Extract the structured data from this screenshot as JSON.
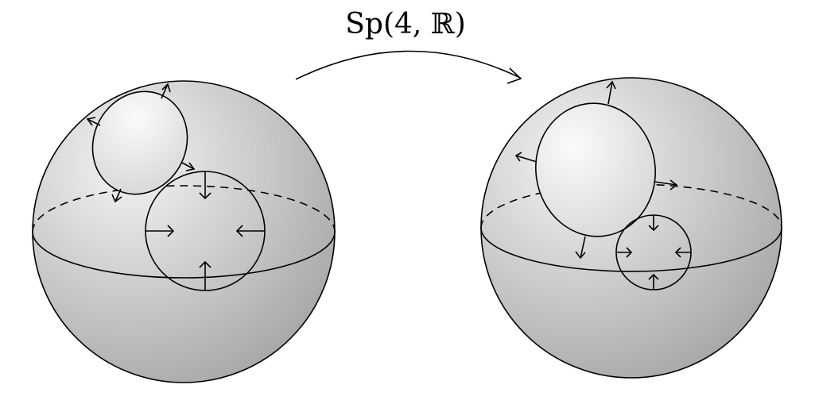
{
  "map_label": "Sp(4, ℝ)",
  "colors": {
    "sphere_light": "#f4f4f4",
    "sphere_dark": "#a9a9a9",
    "stroke": "#000000",
    "background": "#ffffff"
  },
  "spheres": [
    {
      "name": "left-sphere",
      "circles": [
        {
          "name": "upper-circle",
          "arrow_direction": "outward"
        },
        {
          "name": "lower-circle",
          "arrow_direction": "inward"
        }
      ]
    },
    {
      "name": "right-sphere",
      "circles": [
        {
          "name": "upper-circle",
          "arrow_direction": "outward"
        },
        {
          "name": "lower-circle",
          "arrow_direction": "inward"
        }
      ]
    }
  ]
}
